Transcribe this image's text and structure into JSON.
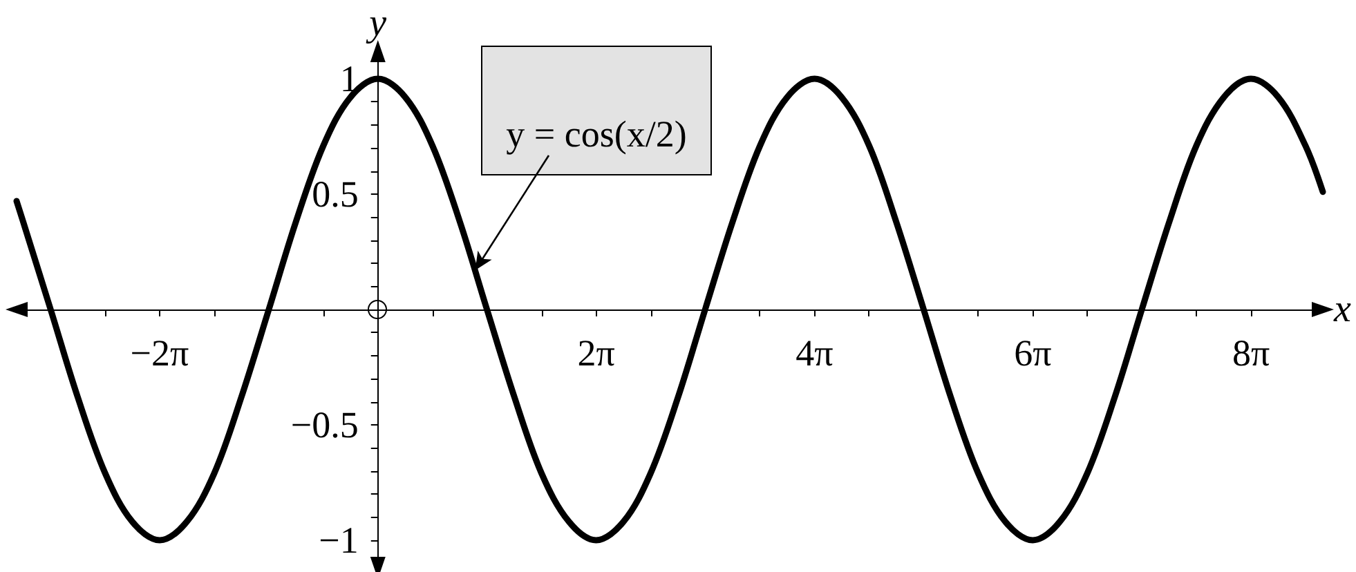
{
  "chart_data": {
    "type": "line",
    "xlabel": "x",
    "ylabel": "y",
    "annotations": [
      {
        "text": "y = cos(x/2)",
        "x": 2.8,
        "y": 0.17
      }
    ],
    "x": [
      -10.4,
      -10.21,
      -9.42,
      -8.64,
      -7.85,
      -7.07,
      -6.28,
      -5.5,
      -4.71,
      -3.93,
      -3.14,
      -2.36,
      -1.57,
      -0.79,
      0,
      0.79,
      1.57,
      2.36,
      3.14,
      3.93,
      4.71,
      5.5,
      6.28,
      7.07,
      7.85,
      8.64,
      9.42,
      10.21,
      11,
      11.78,
      12.57,
      13.35,
      14.14,
      14.92,
      15.71,
      16.49,
      17.28,
      18.06,
      18.85,
      19.63,
      20.42,
      21.21,
      21.99,
      22.78,
      23.56,
      24.35,
      25.13,
      25.92,
      26.7,
      27.2
    ],
    "series": [
      {
        "color": "#000000",
        "values": [
          0.47,
          0.38,
          0,
          -0.38,
          -0.71,
          -0.92,
          -1,
          -0.92,
          -0.71,
          -0.38,
          0,
          0.38,
          0.71,
          0.92,
          1,
          0.92,
          0.71,
          0.38,
          0,
          -0.38,
          -0.71,
          -0.92,
          -1,
          -0.92,
          -0.71,
          -0.38,
          0,
          0.38,
          0.71,
          0.92,
          1,
          0.92,
          0.71,
          0.38,
          0,
          -0.38,
          -0.71,
          -0.92,
          -1,
          -0.92,
          -0.71,
          -0.38,
          0,
          0.38,
          0.71,
          0.92,
          1,
          0.92,
          0.71,
          0.51
        ]
      }
    ],
    "xlim": [
      -10.4,
      27.2
    ],
    "ylim": [
      -1.12,
      1.12
    ],
    "xticks": [
      {
        "value": -7.854,
        "label": null
      },
      {
        "value": -6.283,
        "label": "−2π"
      },
      {
        "value": -4.712,
        "label": null
      },
      {
        "value": -1.571,
        "label": null
      },
      {
        "value": 1.571,
        "label": null
      },
      {
        "value": 4.712,
        "label": null
      },
      {
        "value": 6.283,
        "label": "2π"
      },
      {
        "value": 7.854,
        "label": null
      },
      {
        "value": 10.996,
        "label": null
      },
      {
        "value": 12.566,
        "label": "4π"
      },
      {
        "value": 14.137,
        "label": null
      },
      {
        "value": 17.279,
        "label": null
      },
      {
        "value": 18.85,
        "label": "6π"
      },
      {
        "value": 20.42,
        "label": null
      },
      {
        "value": 23.562,
        "label": null
      },
      {
        "value": 25.133,
        "label": "8π"
      }
    ],
    "yticks": [
      {
        "value": -1,
        "label": "−1"
      },
      {
        "value": -0.9,
        "label": null
      },
      {
        "value": -0.8,
        "label": null
      },
      {
        "value": -0.7,
        "label": null
      },
      {
        "value": -0.6,
        "label": null
      },
      {
        "value": -0.5,
        "label": "−0.5"
      },
      {
        "value": -0.4,
        "label": null
      },
      {
        "value": -0.3,
        "label": null
      },
      {
        "value": -0.2,
        "label": null
      },
      {
        "value": -0.1,
        "label": null
      },
      {
        "value": 0.1,
        "label": null
      },
      {
        "value": 0.2,
        "label": null
      },
      {
        "value": 0.3,
        "label": null
      },
      {
        "value": 0.4,
        "label": null
      },
      0.5,
      {
        "value": 0.6,
        "label": null
      },
      {
        "value": 0.7,
        "label": null
      },
      {
        "value": 0.8,
        "label": null
      },
      {
        "value": 0.9,
        "label": null
      },
      1
    ],
    "marker": "none"
  }
}
